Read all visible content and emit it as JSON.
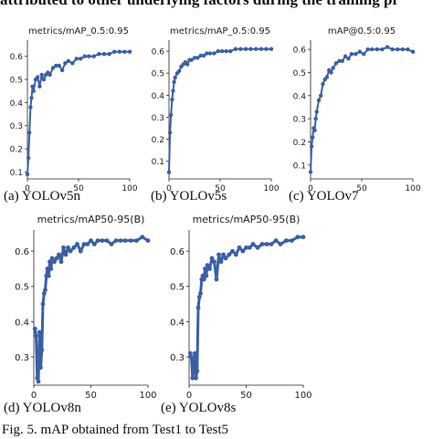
{
  "header_text": "attributed to other underlying factors during the training pr",
  "figure_caption": "Fig. 5. mAP obtained from Test1 to Test5",
  "chart_data": [
    {
      "type": "line",
      "title": "metrics/mAP_0.5:0.95",
      "caption": "(a) YOLOv5n",
      "xlim": [
        0,
        100
      ],
      "ylim": [
        0.07,
        0.67
      ],
      "xticks": [
        0,
        50,
        100
      ],
      "yticks": [
        0.1,
        0.2,
        0.3,
        0.4,
        0.5,
        0.6
      ],
      "yticklabels": [
        "0.1",
        "0.2",
        "0.3",
        "0.4",
        "0.5",
        "0.6"
      ],
      "x": [
        0,
        1,
        2,
        3,
        4,
        5,
        6,
        8,
        10,
        12,
        14,
        16,
        18,
        20,
        22,
        25,
        28,
        31,
        34,
        37,
        40,
        44,
        48,
        52,
        56,
        60,
        65,
        70,
        75,
        80,
        85,
        90,
        95,
        100
      ],
      "y": [
        0.09,
        0.16,
        0.27,
        0.38,
        0.42,
        0.47,
        0.45,
        0.5,
        0.51,
        0.47,
        0.52,
        0.5,
        0.52,
        0.53,
        0.52,
        0.55,
        0.56,
        0.56,
        0.54,
        0.57,
        0.58,
        0.57,
        0.59,
        0.59,
        0.6,
        0.6,
        0.6,
        0.61,
        0.61,
        0.61,
        0.62,
        0.62,
        0.62,
        0.62
      ]
    },
    {
      "type": "line",
      "title": "metrics/mAP_0.5:0.95",
      "caption": "(b) YOLOv5s",
      "xlim": [
        0,
        100
      ],
      "ylim": [
        0.02,
        0.65
      ],
      "xticks": [
        0,
        50,
        100
      ],
      "yticks": [
        0.1,
        0.2,
        0.3,
        0.4,
        0.5,
        0.6
      ],
      "yticklabels": [
        "0.1",
        "0.2",
        "0.3",
        "0.4",
        "0.5",
        "0.6"
      ],
      "x": [
        0,
        1,
        2,
        3,
        4,
        5,
        6,
        8,
        10,
        12,
        14,
        16,
        18,
        20,
        22,
        25,
        28,
        31,
        34,
        37,
        40,
        44,
        48,
        52,
        56,
        60,
        65,
        70,
        75,
        80,
        85,
        90,
        95,
        100
      ],
      "y": [
        0.05,
        0.23,
        0.31,
        0.38,
        0.42,
        0.46,
        0.48,
        0.5,
        0.51,
        0.53,
        0.54,
        0.55,
        0.54,
        0.56,
        0.56,
        0.57,
        0.57,
        0.58,
        0.58,
        0.59,
        0.59,
        0.59,
        0.6,
        0.6,
        0.6,
        0.6,
        0.61,
        0.61,
        0.61,
        0.61,
        0.61,
        0.61,
        0.61,
        0.61
      ]
    },
    {
      "type": "line",
      "title": "mAP@0.5:0.95",
      "caption": "(c) YOLOv7",
      "xlim": [
        0,
        100
      ],
      "ylim": [
        0.04,
        0.64
      ],
      "xticks": [
        0,
        50,
        100
      ],
      "yticks": [
        0.1,
        0.2,
        0.3,
        0.4,
        0.5,
        0.6
      ],
      "yticklabels": [
        "0.1",
        "0.2",
        "0.3",
        "0.4",
        "0.5",
        "0.6"
      ],
      "x": [
        0,
        1,
        2,
        3,
        4,
        5,
        6,
        8,
        10,
        12,
        14,
        16,
        18,
        20,
        22,
        25,
        28,
        31,
        34,
        37,
        40,
        44,
        48,
        52,
        56,
        60,
        65,
        70,
        75,
        80,
        85,
        90,
        95,
        100
      ],
      "y": [
        0.07,
        0.18,
        0.22,
        0.26,
        0.25,
        0.3,
        0.33,
        0.38,
        0.4,
        0.45,
        0.47,
        0.48,
        0.51,
        0.5,
        0.52,
        0.54,
        0.55,
        0.55,
        0.57,
        0.56,
        0.58,
        0.58,
        0.59,
        0.58,
        0.6,
        0.6,
        0.6,
        0.6,
        0.61,
        0.6,
        0.6,
        0.6,
        0.6,
        0.59
      ]
    },
    {
      "type": "line",
      "title": "metrics/mAP50-95(B)",
      "caption": "(d) YOLOv8n",
      "xlim": [
        0,
        100
      ],
      "ylim": [
        0.22,
        0.66
      ],
      "xticks": [
        0,
        50,
        100
      ],
      "yticks": [
        0.3,
        0.4,
        0.5,
        0.6
      ],
      "yticklabels": [
        "0.3",
        "0.4",
        "0.5",
        "0.6"
      ],
      "x": [
        1,
        2,
        3,
        4,
        5,
        6,
        7,
        8,
        9,
        10,
        11,
        12,
        13,
        14,
        15,
        16,
        18,
        20,
        22,
        24,
        26,
        28,
        30,
        32,
        35,
        38,
        41,
        44,
        47,
        50,
        53,
        56,
        60,
        64,
        68,
        72,
        76,
        80,
        85,
        90,
        95,
        100
      ],
      "y": [
        0.38,
        0.36,
        0.24,
        0.23,
        0.37,
        0.27,
        0.32,
        0.45,
        0.48,
        0.49,
        0.53,
        0.55,
        0.53,
        0.57,
        0.55,
        0.58,
        0.57,
        0.58,
        0.59,
        0.57,
        0.61,
        0.59,
        0.61,
        0.6,
        0.61,
        0.62,
        0.6,
        0.62,
        0.62,
        0.63,
        0.62,
        0.63,
        0.63,
        0.63,
        0.62,
        0.63,
        0.63,
        0.63,
        0.63,
        0.63,
        0.64,
        0.63
      ]
    },
    {
      "type": "line",
      "title": "metrics/mAP50-95(B)",
      "caption": "(e) YOLOv8s",
      "xlim": [
        0,
        100
      ],
      "ylim": [
        0.22,
        0.66
      ],
      "xticks": [
        0,
        50,
        100
      ],
      "yticks": [
        0.3,
        0.4,
        0.5,
        0.6
      ],
      "yticklabels": [
        "0.3",
        "0.4",
        "0.5",
        "0.6"
      ],
      "x": [
        1,
        2,
        3,
        4,
        5,
        6,
        7,
        8,
        9,
        10,
        11,
        12,
        13,
        14,
        15,
        16,
        18,
        20,
        22,
        24,
        26,
        28,
        30,
        32,
        35,
        38,
        41,
        44,
        47,
        50,
        53,
        56,
        60,
        64,
        68,
        72,
        76,
        80,
        85,
        90,
        95,
        100
      ],
      "y": [
        0.31,
        0.3,
        0.24,
        0.27,
        0.31,
        0.24,
        0.26,
        0.44,
        0.47,
        0.48,
        0.52,
        0.53,
        0.52,
        0.55,
        0.53,
        0.56,
        0.55,
        0.58,
        0.57,
        0.52,
        0.59,
        0.57,
        0.59,
        0.58,
        0.59,
        0.6,
        0.59,
        0.61,
        0.6,
        0.61,
        0.61,
        0.62,
        0.61,
        0.62,
        0.62,
        0.62,
        0.63,
        0.62,
        0.63,
        0.63,
        0.64,
        0.64
      ]
    }
  ]
}
